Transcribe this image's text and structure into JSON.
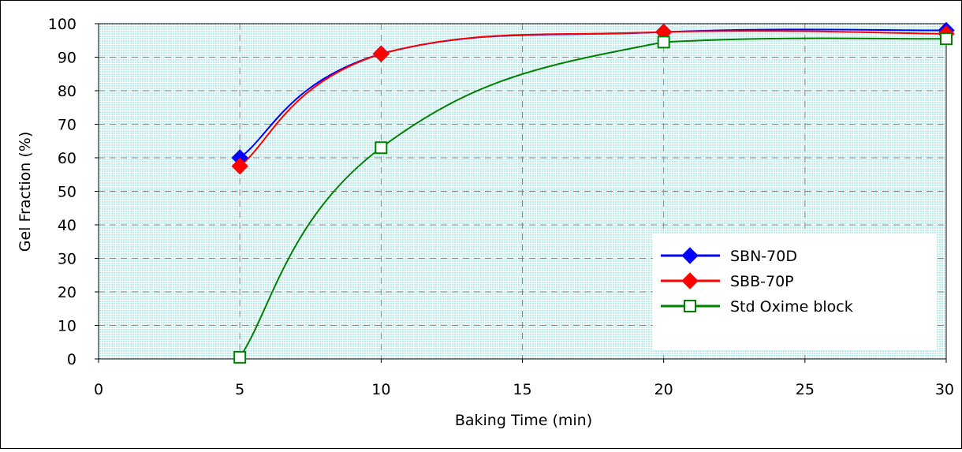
{
  "chart_data": {
    "type": "line",
    "xlabel": "Baking Time (min)",
    "ylabel": "Gel Fraction (%)",
    "xlim": [
      0,
      30
    ],
    "ylim": [
      0,
      100
    ],
    "x_ticks": [
      0,
      5,
      10,
      15,
      20,
      25,
      30
    ],
    "y_ticks": [
      0,
      10,
      20,
      30,
      40,
      50,
      60,
      70,
      80,
      90,
      100
    ],
    "grid": true,
    "legend_position": "bottom-right",
    "plot_background": "#c8f0f0",
    "series": [
      {
        "name": "SBN-70D",
        "color": "#0000ff",
        "marker": "filled-diamond",
        "marker_color": "#0000ff",
        "x": [
          5,
          10,
          20,
          30
        ],
        "y": [
          60,
          91,
          97.5,
          98
        ]
      },
      {
        "name": "SBB-70P",
        "color": "#ff0000",
        "marker": "filled-diamond",
        "marker_color": "#ff0000",
        "x": [
          5,
          10,
          20,
          30
        ],
        "y": [
          57.5,
          91,
          97.5,
          97
        ]
      },
      {
        "name": "Std Oxime block",
        "color": "#008000",
        "marker": "open-square",
        "marker_color": "#008000",
        "x": [
          5,
          10,
          20,
          30
        ],
        "y": [
          0.5,
          63,
          94.5,
          95.5
        ]
      }
    ]
  }
}
